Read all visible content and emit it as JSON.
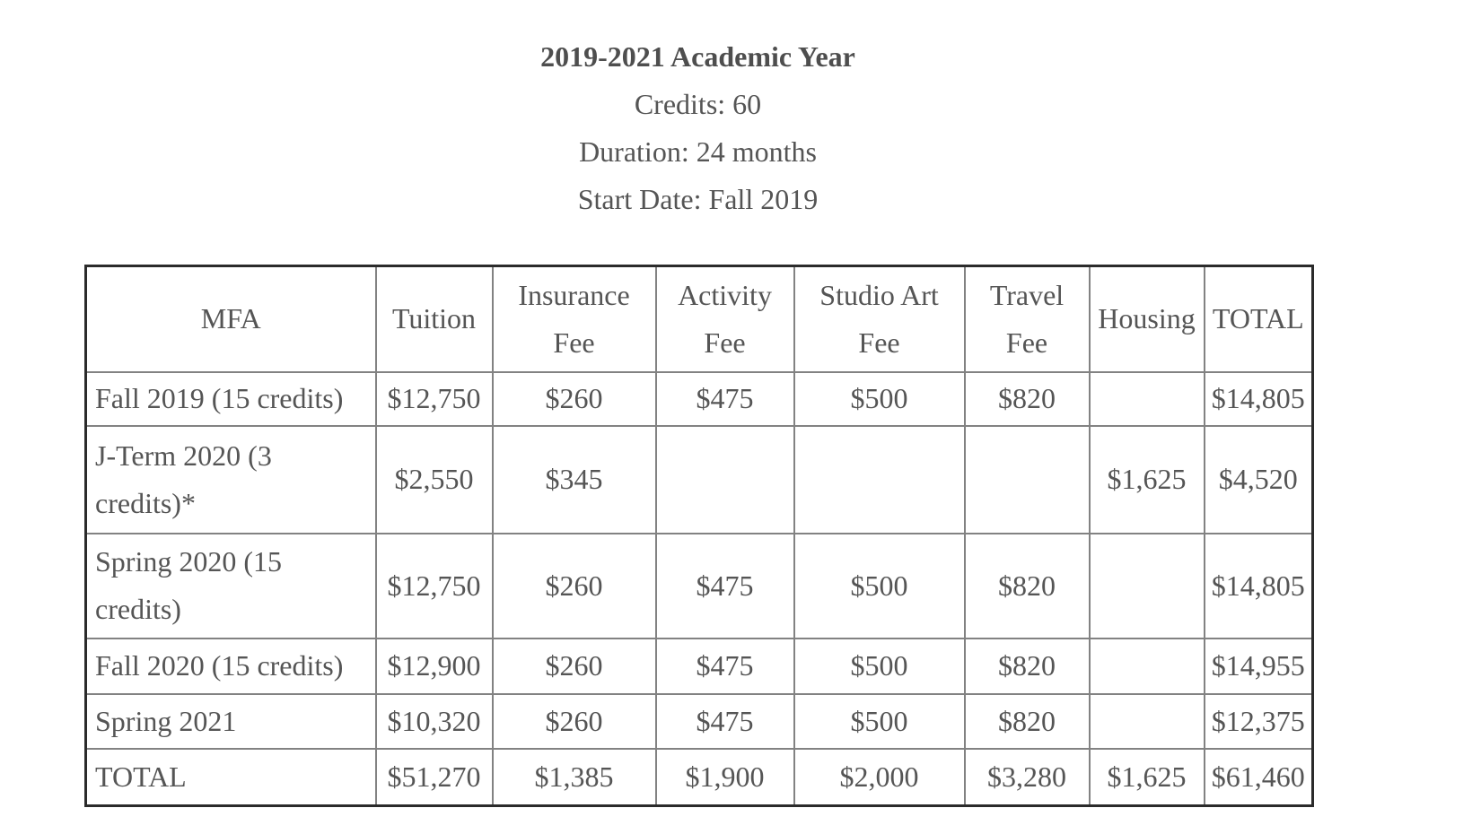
{
  "page": {
    "title": "2019-2021 Academic Year",
    "credits": "Credits: 60",
    "duration": "Duration: 24 months",
    "start_date": "Start Date: Fall 2019"
  },
  "table": {
    "columns": [
      "MFA",
      "Tuition",
      "Insurance Fee",
      "Activity Fee",
      "Studio Art Fee",
      "Travel Fee",
      "Housing",
      "TOTAL"
    ],
    "rows": [
      [
        "Fall 2019 (15 credits)",
        "$12,750",
        "$260",
        "$475",
        "$500",
        "$820",
        "",
        "$14,805"
      ],
      [
        "J-Term 2020 (3 credits)*",
        "$2,550",
        "$345",
        "",
        "",
        "",
        "$1,625",
        "$4,520"
      ],
      [
        "Spring 2020 (15 credits)",
        "$12,750",
        "$260",
        "$475",
        "$500",
        "$820",
        "",
        "$14,805"
      ],
      [
        "Fall 2020 (15 credits)",
        "$12,900",
        "$260",
        "$475",
        "$500",
        "$820",
        "",
        "$14,955"
      ],
      [
        "Spring 2021",
        "$10,320",
        "$260",
        "$475",
        "$500",
        "$820",
        "",
        "$12,375"
      ],
      [
        "TOTAL",
        "$51,270",
        "$1,385",
        "$1,900",
        "$2,000",
        "$3,280",
        "$1,625",
        "$61,460"
      ]
    ]
  },
  "colors": {
    "text": "#555555",
    "title_text": "#4e4e4e",
    "inner_border": "#828282",
    "outer_border": "#2b2b2b"
  }
}
